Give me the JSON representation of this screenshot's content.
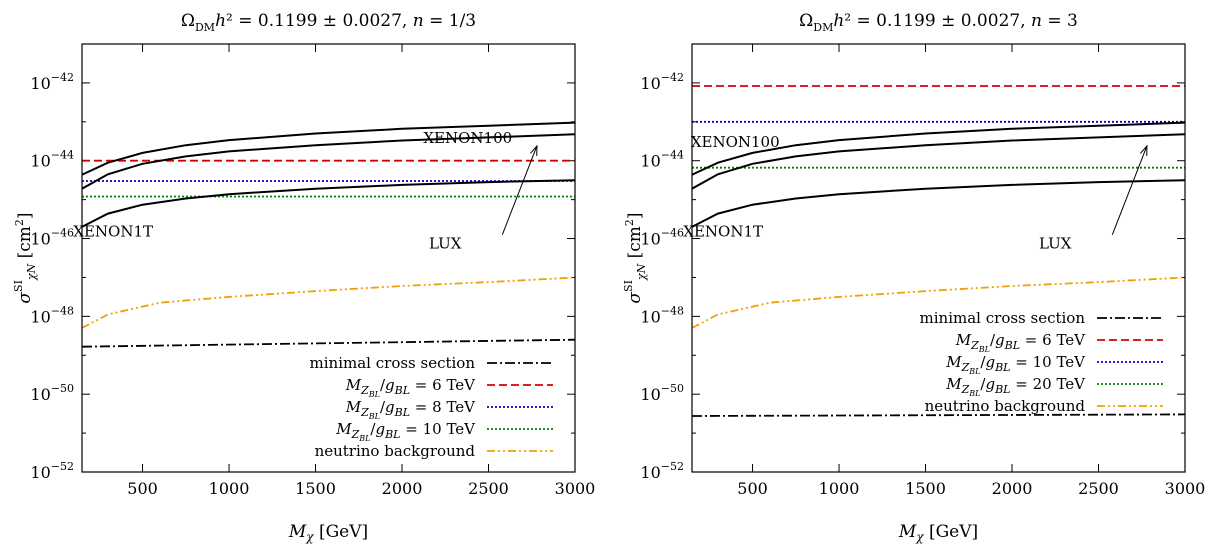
{
  "chart_data": [
    {
      "type": "line",
      "title": "Ω_DM h² = 0.1199 ± 0.0027, n = 1/3",
      "xlabel": "M_χ [GeV]",
      "ylabel": "σ^SI_χN [cm²]",
      "xlim": [
        150,
        3000
      ],
      "ylim_log10": [
        -52,
        -41
      ],
      "y_scale": "log",
      "xticks": [
        500,
        1000,
        1500,
        2000,
        2500,
        3000
      ],
      "yticks": [
        {
          "exp": -42,
          "base": "10",
          "sup": "−42"
        },
        {
          "exp": -44,
          "base": "10",
          "sup": "−44"
        },
        {
          "exp": -46,
          "base": "10",
          "sup": "−46"
        },
        {
          "exp": -48,
          "base": "10",
          "sup": "−48"
        },
        {
          "exp": -50,
          "base": "10",
          "sup": "−50"
        },
        {
          "exp": -52,
          "base": "10",
          "sup": "−52"
        }
      ],
      "grid": false,
      "legend_position": "bottom-right",
      "series": [
        {
          "name": "minimal cross section",
          "style": "dashdot",
          "color": "#000000",
          "x": [
            150,
            3000
          ],
          "log10_y": [
            -48.78,
            -48.6
          ],
          "in_legend": true
        },
        {
          "name": "M_ZBL/g_BL = 6 TeV",
          "style": "dashed",
          "color": "#d40000",
          "x": [
            150,
            3000
          ],
          "log10_y": [
            -44.0,
            -44.0
          ],
          "in_legend": true
        },
        {
          "name": "M_ZBL/g_BL = 8 TeV",
          "style": "dotted",
          "color": "#0000cc",
          "x": [
            150,
            3000
          ],
          "log10_y": [
            -44.52,
            -44.52
          ],
          "in_legend": true
        },
        {
          "name": "M_ZBL/g_BL = 10 TeV",
          "style": "dotted",
          "color": "#008000",
          "x": [
            150,
            3000
          ],
          "log10_y": [
            -44.92,
            -44.92
          ],
          "in_legend": true
        },
        {
          "name": "neutrino background",
          "style": "dashdotdot",
          "color": "#f0a000",
          "x": [
            150,
            300,
            600,
            1000,
            1500,
            2000,
            2500,
            3000
          ],
          "log10_y": [
            -48.3,
            -47.95,
            -47.65,
            -47.5,
            -47.35,
            -47.22,
            -47.12,
            -47.0
          ],
          "in_legend": true
        },
        {
          "name": "",
          "style": "solid",
          "color": "#000000",
          "x": [
            150,
            300,
            500,
            750,
            1000,
            1500,
            2000,
            2500,
            3000
          ],
          "log10_y": [
            -44.36,
            -44.05,
            -43.8,
            -43.6,
            -43.47,
            -43.3,
            -43.18,
            -43.1,
            -43.02
          ],
          "in_legend": false
        },
        {
          "name": "",
          "style": "solid",
          "color": "#000000",
          "x": [
            150,
            300,
            500,
            750,
            1000,
            1500,
            2000,
            2500,
            3000
          ],
          "log10_y": [
            -44.72,
            -44.35,
            -44.08,
            -43.89,
            -43.76,
            -43.6,
            -43.48,
            -43.4,
            -43.32
          ],
          "in_legend": false
        },
        {
          "name": "",
          "style": "solid",
          "color": "#000000",
          "x": [
            150,
            300,
            500,
            750,
            1000,
            1500,
            2000,
            2500,
            3000
          ],
          "log10_y": [
            -45.7,
            -45.36,
            -45.13,
            -44.97,
            -44.86,
            -44.72,
            -44.62,
            -44.55,
            -44.5
          ],
          "in_legend": false
        }
      ],
      "annotations": [
        {
          "text": "XENON100",
          "x": 2380,
          "log10_y": -43.55
        },
        {
          "text": "XENON1T",
          "x": 330,
          "log10_y": -45.95
        },
        {
          "text": "LUX",
          "x": 2250,
          "log10_y": -46.25
        }
      ],
      "arrow": {
        "from_x": 2580,
        "from_log10_y": -45.9,
        "to_x": 2780,
        "to_log10_y": -43.62
      }
    },
    {
      "type": "line",
      "title": "Ω_DM h² = 0.1199 ± 0.0027, n = 3",
      "xlabel": "M_χ [GeV]",
      "ylabel": "σ^SI_χN [cm²]",
      "xlim": [
        150,
        3000
      ],
      "ylim_log10": [
        -52,
        -41
      ],
      "y_scale": "log",
      "xticks": [
        500,
        1000,
        1500,
        2000,
        2500,
        3000
      ],
      "yticks": [
        {
          "exp": -42,
          "base": "10",
          "sup": "−42"
        },
        {
          "exp": -44,
          "base": "10",
          "sup": "−44"
        },
        {
          "exp": -46,
          "base": "10",
          "sup": "−46"
        },
        {
          "exp": -48,
          "base": "10",
          "sup": "−48"
        },
        {
          "exp": -50,
          "base": "10",
          "sup": "−50"
        },
        {
          "exp": -52,
          "base": "10",
          "sup": "−52"
        }
      ],
      "grid": false,
      "legend_position": "center-right",
      "series": [
        {
          "name": "minimal cross section",
          "style": "dashdot",
          "color": "#000000",
          "x": [
            150,
            3000
          ],
          "log10_y": [
            -50.56,
            -50.52
          ],
          "in_legend": true
        },
        {
          "name": "M_ZBL/g_BL = 6 TeV",
          "style": "dashed",
          "color": "#d40000",
          "x": [
            150,
            3000
          ],
          "log10_y": [
            -42.08,
            -42.08
          ],
          "in_legend": true
        },
        {
          "name": "M_ZBL/g_BL = 10 TeV",
          "style": "dotted",
          "color": "#0000cc",
          "x": [
            150,
            3000
          ],
          "log10_y": [
            -43.0,
            -43.0
          ],
          "in_legend": true
        },
        {
          "name": "M_ZBL/g_BL = 20 TeV",
          "style": "dotted",
          "color": "#008000",
          "x": [
            150,
            3000
          ],
          "log10_y": [
            -44.18,
            -44.18
          ],
          "in_legend": true
        },
        {
          "name": "neutrino background",
          "style": "dashdotdot",
          "color": "#f0a000",
          "x": [
            150,
            300,
            600,
            1000,
            1500,
            2000,
            2500,
            3000
          ],
          "log10_y": [
            -48.3,
            -47.95,
            -47.65,
            -47.5,
            -47.35,
            -47.22,
            -47.12,
            -47.0
          ],
          "in_legend": true
        },
        {
          "name": "",
          "style": "solid",
          "color": "#000000",
          "x": [
            150,
            300,
            500,
            750,
            1000,
            1500,
            2000,
            2500,
            3000
          ],
          "log10_y": [
            -44.36,
            -44.05,
            -43.8,
            -43.6,
            -43.47,
            -43.3,
            -43.18,
            -43.1,
            -43.02
          ],
          "in_legend": false
        },
        {
          "name": "",
          "style": "solid",
          "color": "#000000",
          "x": [
            150,
            300,
            500,
            750,
            1000,
            1500,
            2000,
            2500,
            3000
          ],
          "log10_y": [
            -44.72,
            -44.35,
            -44.08,
            -43.89,
            -43.76,
            -43.6,
            -43.48,
            -43.4,
            -43.32
          ],
          "in_legend": false
        },
        {
          "name": "",
          "style": "solid",
          "color": "#000000",
          "x": [
            150,
            300,
            500,
            750,
            1000,
            1500,
            2000,
            2500,
            3000
          ],
          "log10_y": [
            -45.7,
            -45.36,
            -45.13,
            -44.97,
            -44.86,
            -44.72,
            -44.62,
            -44.55,
            -44.5
          ],
          "in_legend": false
        }
      ],
      "annotations": [
        {
          "text": "XENON100",
          "x": 400,
          "log10_y": -43.65
        },
        {
          "text": "XENON1T",
          "x": 330,
          "log10_y": -45.95
        },
        {
          "text": "LUX",
          "x": 2250,
          "log10_y": -46.25
        }
      ],
      "arrow": {
        "from_x": 2580,
        "from_log10_y": -45.9,
        "to_x": 2780,
        "to_log10_y": -43.62
      }
    }
  ]
}
